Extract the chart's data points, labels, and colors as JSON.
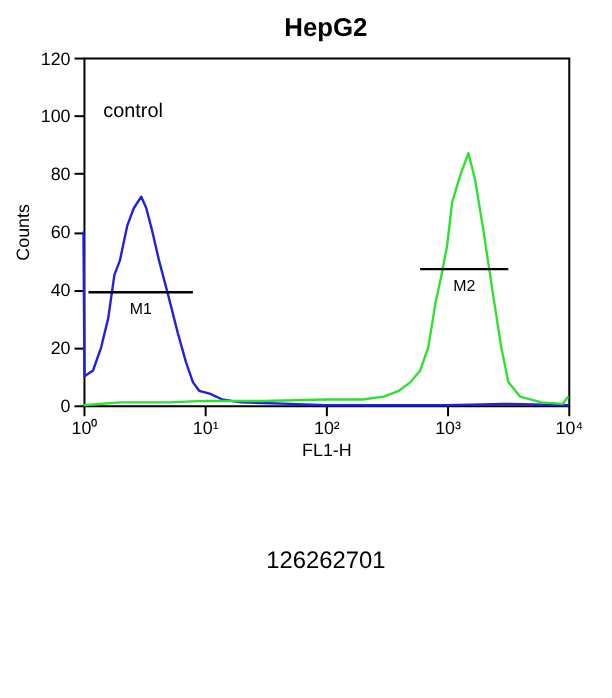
{
  "chart_data": {
    "type": "line",
    "title": "HepG2",
    "xlabel": "FL1-H",
    "ylabel": "Counts",
    "log": "x",
    "xlim": [
      1,
      10000
    ],
    "xticks": [
      {
        "value": 1,
        "label": "10⁰"
      },
      {
        "value": 10,
        "label": "10¹"
      },
      {
        "value": 100,
        "label": "10²"
      },
      {
        "value": 1000,
        "label": "10³"
      },
      {
        "value": 10000,
        "label": "10⁴"
      }
    ],
    "ylim": [
      0,
      120
    ],
    "yticks": [
      0,
      20,
      40,
      60,
      80,
      100,
      120
    ],
    "grid": false,
    "series": [
      {
        "color": "#2020e0",
        "x": [
          1.0,
          1.02,
          1.2,
          1.4,
          1.6,
          1.8,
          2.0,
          2.3,
          2.6,
          3.0,
          3.3,
          3.7,
          4.2,
          5,
          6,
          7,
          8,
          9,
          11,
          14,
          20,
          50,
          100,
          1000,
          3000,
          10000
        ],
        "values": [
          60,
          10,
          12,
          20,
          30,
          45,
          50,
          62,
          68,
          72,
          68,
          60,
          50,
          38,
          25,
          15,
          8,
          5,
          4,
          2,
          1,
          0.5,
          0,
          0,
          0.5,
          0
        ]
      },
      {
        "color": "#30e030",
        "x": [
          1,
          2,
          5,
          10,
          30,
          100,
          200,
          300,
          400,
          500,
          600,
          700,
          800,
          900,
          1000,
          1100,
          1300,
          1500,
          1700,
          2000,
          2400,
          2800,
          3200,
          4000,
          6000,
          9000,
          10000
        ],
        "values": [
          0,
          1,
          1,
          1.5,
          1.5,
          2,
          2,
          3,
          5,
          8,
          12,
          20,
          35,
          45,
          55,
          70,
          80,
          87,
          78,
          60,
          38,
          20,
          8,
          3,
          1,
          0.5,
          3
        ]
      },
      {
        "name": "M1",
        "color": "#000000",
        "x": [
          1.1,
          8
        ],
        "values": [
          39,
          39
        ]
      },
      {
        "name": "M2",
        "color": "#000000",
        "x": [
          600,
          3200
        ],
        "values": [
          47,
          47
        ]
      }
    ],
    "annotations": [
      "control",
      "126262701"
    ]
  }
}
